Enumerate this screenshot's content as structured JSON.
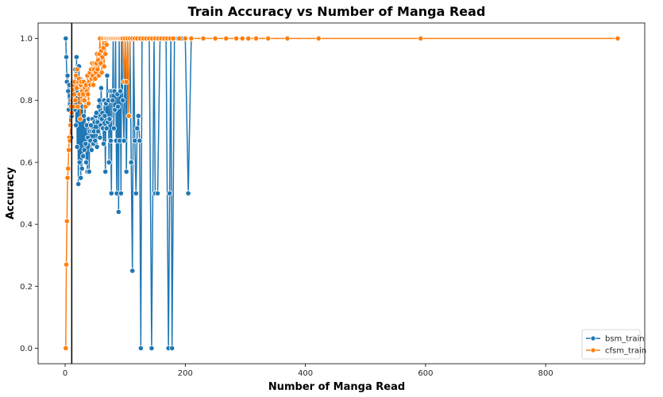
{
  "chart_data": {
    "type": "line",
    "title": "Train Accuracy vs Number of Manga Read",
    "xlabel": "Number of Manga Read",
    "ylabel": "Accuracy",
    "xlim": [
      -45,
      965
    ],
    "ylim": [
      -0.05,
      1.05
    ],
    "xticks": [
      0,
      200,
      400,
      600,
      800
    ],
    "yticks": [
      0.0,
      0.2,
      0.4,
      0.6,
      0.8,
      1.0
    ],
    "xtick_labels": [
      "0",
      "200",
      "400",
      "600",
      "800"
    ],
    "ytick_labels": [
      "0.0",
      "0.2",
      "0.4",
      "0.6",
      "0.8",
      "1.0"
    ],
    "grid": false,
    "legend_position": "lower-right",
    "vline_x": 11,
    "series": [
      {
        "name": "bsm_train",
        "color": "#1f77b4",
        "points": [
          [
            1,
            1.0
          ],
          [
            2,
            0.94
          ],
          [
            3,
            0.86
          ],
          [
            4,
            0.88
          ],
          [
            5,
            0.83
          ],
          [
            6,
            0.77
          ],
          [
            7,
            0.85
          ],
          [
            8,
            0.72
          ],
          [
            9,
            0.8
          ],
          [
            10,
            0.68
          ],
          [
            11,
            0.75
          ],
          [
            12,
            0.78
          ],
          [
            13,
            0.86
          ],
          [
            14,
            0.8
          ],
          [
            15,
            0.82
          ],
          [
            16,
            0.77
          ],
          [
            17,
            0.9
          ],
          [
            18,
            0.72
          ],
          [
            19,
            0.94
          ],
          [
            20,
            0.65
          ],
          [
            21,
            0.83
          ],
          [
            22,
            0.53
          ],
          [
            23,
            0.91
          ],
          [
            24,
            0.6
          ],
          [
            25,
            0.87
          ],
          [
            26,
            0.55
          ],
          [
            27,
            0.83
          ],
          [
            28,
            0.58
          ],
          [
            29,
            0.78
          ],
          [
            30,
            0.62
          ],
          [
            31,
            0.75
          ],
          [
            32,
            0.64
          ],
          [
            33,
            0.8
          ],
          [
            34,
            0.66
          ],
          [
            35,
            0.6
          ],
          [
            36,
            0.72
          ],
          [
            37,
            0.57
          ],
          [
            38,
            0.68
          ],
          [
            39,
            0.74
          ],
          [
            40,
            0.57
          ],
          [
            41,
            0.7
          ],
          [
            42,
            0.67
          ],
          [
            43,
            0.72
          ],
          [
            44,
            0.64
          ],
          [
            45,
            0.7
          ],
          [
            46,
            0.74
          ],
          [
            47,
            0.66
          ],
          [
            48,
            0.7
          ],
          [
            49,
            0.73
          ],
          [
            50,
            0.67
          ],
          [
            51,
            0.75
          ],
          [
            52,
            0.76
          ],
          [
            53,
            0.65
          ],
          [
            54,
            0.73
          ],
          [
            55,
            0.7
          ],
          [
            56,
            0.78
          ],
          [
            57,
            0.8
          ],
          [
            58,
            0.68
          ],
          [
            59,
            0.72
          ],
          [
            60,
            0.84
          ],
          [
            61,
            0.74
          ],
          [
            62,
            0.76
          ],
          [
            63,
            0.71
          ],
          [
            64,
            0.66
          ],
          [
            65,
            0.8
          ],
          [
            66,
            0.75
          ],
          [
            67,
            0.57
          ],
          [
            68,
            0.79
          ],
          [
            69,
            0.71
          ],
          [
            70,
            0.88
          ],
          [
            71,
            0.73
          ],
          [
            72,
            0.8
          ],
          [
            73,
            0.6
          ],
          [
            74,
            0.74
          ],
          [
            75,
            0.83
          ],
          [
            76,
            0.67
          ],
          [
            77,
            0.5
          ],
          [
            78,
            0.83
          ],
          [
            79,
            0.8
          ],
          [
            80,
            1.0
          ],
          [
            81,
            0.71
          ],
          [
            82,
            0.83
          ],
          [
            83,
            0.77
          ],
          [
            84,
            1.0
          ],
          [
            85,
            0.67
          ],
          [
            86,
            0.5
          ],
          [
            87,
            0.82
          ],
          [
            88,
            0.78
          ],
          [
            89,
            0.44
          ],
          [
            90,
            1.0
          ],
          [
            91,
            0.67
          ],
          [
            92,
            0.83
          ],
          [
            93,
            0.5
          ],
          [
            94,
            1.0
          ],
          [
            96,
            0.8
          ],
          [
            98,
            0.67
          ],
          [
            100,
            1.0
          ],
          [
            102,
            0.57
          ],
          [
            104,
            1.0
          ],
          [
            106,
            0.75
          ],
          [
            108,
            1.0
          ],
          [
            110,
            0.6
          ],
          [
            112,
            0.25
          ],
          [
            114,
            1.0
          ],
          [
            116,
            0.67
          ],
          [
            118,
            0.5
          ],
          [
            120,
            0.71
          ],
          [
            122,
            0.75
          ],
          [
            124,
            0.67
          ],
          [
            126,
            0.0
          ],
          [
            128,
            1.0
          ],
          [
            132,
            1.0
          ],
          [
            136,
            1.0
          ],
          [
            140,
            1.0
          ],
          [
            144,
            0.0
          ],
          [
            148,
            1.0
          ],
          [
            150,
            0.5
          ],
          [
            154,
            0.5
          ],
          [
            158,
            1.0
          ],
          [
            162,
            1.0
          ],
          [
            168,
            1.0
          ],
          [
            172,
            0.0
          ],
          [
            174,
            0.5
          ],
          [
            176,
            1.0
          ],
          [
            178,
            0.0
          ],
          [
            182,
            1.0
          ],
          [
            188,
            1.0
          ],
          [
            194,
            1.0
          ],
          [
            200,
            1.0
          ],
          [
            205,
            0.5
          ],
          [
            210,
            1.0
          ]
        ]
      },
      {
        "name": "cfsm_train",
        "color": "#ff7f0e",
        "points": [
          [
            1,
            0.0
          ],
          [
            2,
            0.27
          ],
          [
            3,
            0.41
          ],
          [
            4,
            0.55
          ],
          [
            5,
            0.58
          ],
          [
            6,
            0.64
          ],
          [
            7,
            0.68
          ],
          [
            8,
            0.67
          ],
          [
            9,
            0.72
          ],
          [
            10,
            0.78
          ],
          [
            11,
            0.76
          ],
          [
            12,
            0.8
          ],
          [
            13,
            0.85
          ],
          [
            14,
            0.78
          ],
          [
            15,
            0.82
          ],
          [
            16,
            0.86
          ],
          [
            17,
            0.8
          ],
          [
            18,
            0.88
          ],
          [
            19,
            0.84
          ],
          [
            20,
            0.9
          ],
          [
            21,
            0.78
          ],
          [
            22,
            0.86
          ],
          [
            23,
            0.87
          ],
          [
            24,
            0.82
          ],
          [
            25,
            0.74
          ],
          [
            26,
            0.85
          ],
          [
            27,
            0.86
          ],
          [
            28,
            0.83
          ],
          [
            29,
            0.8
          ],
          [
            30,
            0.82
          ],
          [
            31,
            0.86
          ],
          [
            32,
            0.8
          ],
          [
            33,
            0.84
          ],
          [
            34,
            0.78
          ],
          [
            35,
            0.85
          ],
          [
            36,
            0.83
          ],
          [
            37,
            0.88
          ],
          [
            38,
            0.82
          ],
          [
            39,
            0.79
          ],
          [
            40,
            0.86
          ],
          [
            41,
            0.89
          ],
          [
            42,
            0.85
          ],
          [
            43,
            0.9
          ],
          [
            44,
            0.87
          ],
          [
            45,
            0.92
          ],
          [
            46,
            0.88
          ],
          [
            47,
            0.85
          ],
          [
            48,
            0.9
          ],
          [
            49,
            0.92
          ],
          [
            50,
            0.87
          ],
          [
            51,
            0.89
          ],
          [
            52,
            0.92
          ],
          [
            53,
            0.95
          ],
          [
            54,
            0.9
          ],
          [
            55,
            0.93
          ],
          [
            56,
            0.88
          ],
          [
            57,
            0.95
          ],
          [
            58,
            1.0
          ],
          [
            59,
            0.92
          ],
          [
            60,
            0.96
          ],
          [
            61,
            0.89
          ],
          [
            62,
            0.94
          ],
          [
            63,
            1.0
          ],
          [
            64,
            0.97
          ],
          [
            65,
            0.91
          ],
          [
            66,
            1.0
          ],
          [
            67,
            0.95
          ],
          [
            68,
            1.0
          ],
          [
            69,
            0.98
          ],
          [
            70,
            1.0
          ],
          [
            72,
            1.0
          ],
          [
            74,
            1.0
          ],
          [
            76,
            1.0
          ],
          [
            78,
            1.0
          ],
          [
            80,
            1.0
          ],
          [
            82,
            1.0
          ],
          [
            84,
            1.0
          ],
          [
            86,
            1.0
          ],
          [
            88,
            1.0
          ],
          [
            90,
            1.0
          ],
          [
            92,
            1.0
          ],
          [
            94,
            1.0
          ],
          [
            96,
            1.0
          ],
          [
            98,
            0.86
          ],
          [
            100,
            1.0
          ],
          [
            102,
            0.86
          ],
          [
            104,
            1.0
          ],
          [
            106,
            0.75
          ],
          [
            108,
            1.0
          ],
          [
            112,
            1.0
          ],
          [
            116,
            1.0
          ],
          [
            120,
            1.0
          ],
          [
            125,
            1.0
          ],
          [
            130,
            1.0
          ],
          [
            135,
            1.0
          ],
          [
            140,
            1.0
          ],
          [
            145,
            1.0
          ],
          [
            150,
            1.0
          ],
          [
            155,
            1.0
          ],
          [
            160,
            1.0
          ],
          [
            165,
            1.0
          ],
          [
            170,
            1.0
          ],
          [
            175,
            1.0
          ],
          [
            180,
            1.0
          ],
          [
            190,
            1.0
          ],
          [
            200,
            1.0
          ],
          [
            210,
            1.0
          ],
          [
            230,
            1.0
          ],
          [
            250,
            1.0
          ],
          [
            268,
            1.0
          ],
          [
            285,
            1.0
          ],
          [
            295,
            1.0
          ],
          [
            305,
            1.0
          ],
          [
            318,
            1.0
          ],
          [
            338,
            1.0
          ],
          [
            370,
            1.0
          ],
          [
            422,
            1.0
          ],
          [
            592,
            1.0
          ],
          [
            920,
            1.0
          ]
        ]
      }
    ]
  }
}
